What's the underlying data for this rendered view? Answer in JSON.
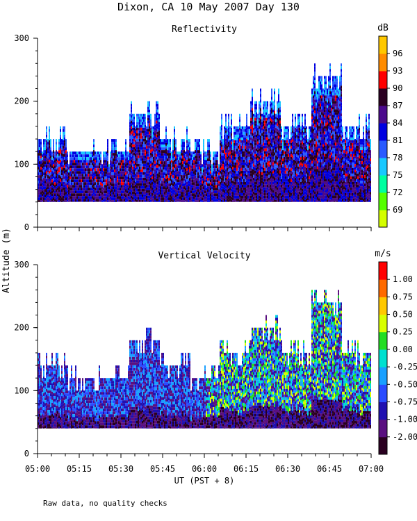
{
  "title": "Dixon, CA 10 May 2007  Day 130",
  "footnote": "Raw data, no quality checks",
  "y_axis_label": "Altitude (m)",
  "x_axis_label": "UT  (PST + 8)",
  "chart_data": [
    {
      "type": "heatmap",
      "title": "Reflectivity",
      "colorbar_unit": "dB",
      "colorbar_ticks": [
        "69",
        "72",
        "75",
        "78",
        "81",
        "84",
        "87",
        "90",
        "93",
        "96"
      ],
      "colorbar_colors": [
        "#d4ff00",
        "#55ff00",
        "#00ffa0",
        "#19c8ff",
        "#2a5bff",
        "#0000e0",
        "#4b0a8c",
        "#2a0020",
        "#ff0000",
        "#ff8c00",
        "#ffc800"
      ],
      "xlabel": "UT  (PST + 8)",
      "ylabel": "Altitude (m)",
      "xticks": [
        "05:00",
        "05:15",
        "05:30",
        "05:45",
        "06:00",
        "06:15",
        "06:30",
        "06:45",
        "07:00"
      ],
      "xlim_minutes": [
        300,
        420
      ],
      "ylim": [
        0,
        300
      ],
      "yticks": [
        0,
        100,
        200,
        300
      ],
      "data_bottom_m": 40,
      "echo_top_m": [
        140,
        120,
        120,
        180,
        140,
        120,
        160,
        200,
        160,
        240,
        160
      ]
    },
    {
      "type": "heatmap",
      "title": "Vertical Velocity",
      "colorbar_unit": "m/s",
      "colorbar_ticks": [
        "-2.00",
        "-1.00",
        "-0.75",
        "-0.50",
        "-0.25",
        "0.00",
        "0.25",
        "0.50",
        "0.75",
        "1.00"
      ],
      "colorbar_colors": [
        "#2a0020",
        "#5a1080",
        "#2010b0",
        "#2a4cff",
        "#19a0ff",
        "#00e0d0",
        "#22dd22",
        "#d8ff00",
        "#ffc800",
        "#ff6a00",
        "#ff0000"
      ],
      "xlabel": "UT  (PST + 8)",
      "ylabel": "Altitude (m)",
      "xticks": [
        "05:00",
        "05:15",
        "05:30",
        "05:45",
        "06:00",
        "06:15",
        "06:30",
        "06:45",
        "07:00"
      ],
      "xlim_minutes": [
        300,
        420
      ],
      "ylim": [
        0,
        300
      ],
      "yticks": [
        0,
        100,
        200,
        300
      ],
      "data_bottom_m": 40,
      "echo_top_m": [
        140,
        120,
        120,
        180,
        140,
        120,
        160,
        200,
        160,
        240,
        160
      ]
    }
  ]
}
